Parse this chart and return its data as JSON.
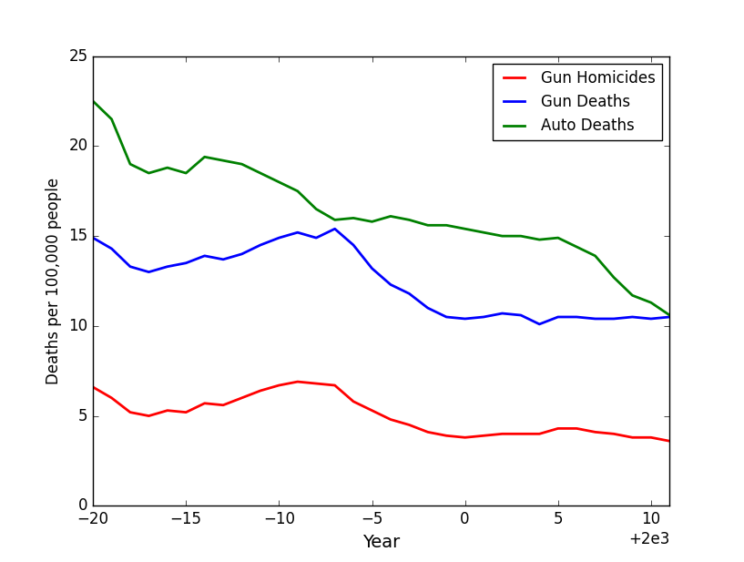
{
  "years": [
    1980,
    1981,
    1982,
    1983,
    1984,
    1985,
    1986,
    1987,
    1988,
    1989,
    1990,
    1991,
    1992,
    1993,
    1994,
    1995,
    1996,
    1997,
    1998,
    1999,
    2000,
    2001,
    2002,
    2003,
    2004,
    2005,
    2006,
    2007,
    2008,
    2009,
    2010,
    2011
  ],
  "gun_homicides": [
    6.6,
    6.0,
    5.2,
    5.0,
    5.3,
    5.2,
    5.7,
    5.6,
    6.0,
    6.4,
    6.7,
    6.9,
    6.8,
    6.7,
    5.8,
    5.3,
    4.8,
    4.5,
    4.1,
    3.9,
    3.8,
    3.9,
    4.0,
    4.0,
    4.0,
    4.3,
    4.3,
    4.1,
    4.0,
    3.8,
    3.8,
    3.6
  ],
  "gun_deaths": [
    14.9,
    14.3,
    13.3,
    13.0,
    13.3,
    13.5,
    13.9,
    13.7,
    14.0,
    14.5,
    14.9,
    15.2,
    14.9,
    15.4,
    14.5,
    13.2,
    12.3,
    11.8,
    11.0,
    10.5,
    10.4,
    10.5,
    10.7,
    10.6,
    10.1,
    10.5,
    10.5,
    10.4,
    10.4,
    10.5,
    10.4,
    10.5
  ],
  "auto_deaths": [
    22.5,
    21.5,
    19.0,
    18.5,
    18.8,
    18.5,
    19.4,
    19.2,
    19.0,
    18.5,
    18.0,
    17.5,
    16.5,
    15.9,
    16.0,
    15.8,
    16.1,
    15.9,
    15.6,
    15.6,
    15.4,
    15.2,
    15.0,
    15.0,
    14.8,
    14.9,
    14.4,
    13.9,
    12.7,
    11.7,
    11.3,
    10.6
  ],
  "xlabel": "Year",
  "ylabel": "Deaths per 100,000 people",
  "ylim": [
    0,
    25
  ],
  "xlim": [
    1980,
    2011
  ],
  "yticks": [
    0,
    5,
    10,
    15,
    20,
    25
  ],
  "xticks": [
    1980,
    1985,
    1990,
    1995,
    2000,
    2005,
    2010
  ],
  "gun_homicides_color": "red",
  "gun_deaths_color": "blue",
  "auto_deaths_color": "green",
  "legend_labels": [
    "Gun Homicides",
    "Gun Deaths",
    "Auto Deaths"
  ],
  "line_width": 2.0
}
